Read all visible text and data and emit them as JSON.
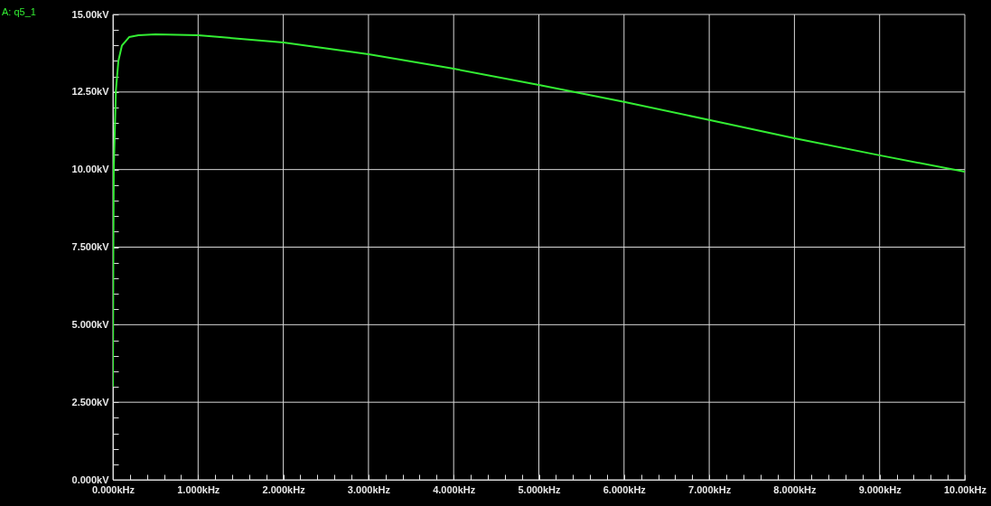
{
  "chart_data": {
    "type": "line",
    "legend": "top left",
    "grid": true,
    "marker": "none",
    "line_style": "solid",
    "xlim": [
      0,
      10
    ],
    "ylim": [
      0,
      15
    ],
    "xticks": [
      {
        "value": 0,
        "label": "0.000kHz"
      },
      {
        "value": 0.2,
        "label": null
      },
      {
        "value": 0.4,
        "label": null
      },
      {
        "value": 0.6,
        "label": null
      },
      {
        "value": 0.8,
        "label": null
      },
      {
        "value": 1,
        "label": "1.000kHz"
      },
      {
        "value": 1.2,
        "label": null
      },
      {
        "value": 1.4,
        "label": null
      },
      {
        "value": 1.6,
        "label": null
      },
      {
        "value": 1.8,
        "label": null
      },
      {
        "value": 2,
        "label": "2.000kHz"
      },
      {
        "value": 2.2,
        "label": null
      },
      {
        "value": 2.4,
        "label": null
      },
      {
        "value": 2.6,
        "label": null
      },
      {
        "value": 2.8,
        "label": null
      },
      {
        "value": 3,
        "label": "3.000kHz"
      },
      {
        "value": 3.2,
        "label": null
      },
      {
        "value": 3.4,
        "label": null
      },
      {
        "value": 3.6,
        "label": null
      },
      {
        "value": 3.8,
        "label": null
      },
      {
        "value": 4,
        "label": "4.000kHz"
      },
      {
        "value": 4.2,
        "label": null
      },
      {
        "value": 4.4,
        "label": null
      },
      {
        "value": 4.6,
        "label": null
      },
      {
        "value": 4.8,
        "label": null
      },
      {
        "value": 5,
        "label": "5.000kHz"
      },
      {
        "value": 5.2,
        "label": null
      },
      {
        "value": 5.4,
        "label": null
      },
      {
        "value": 5.6,
        "label": null
      },
      {
        "value": 5.8,
        "label": null
      },
      {
        "value": 6,
        "label": "6.000kHz"
      },
      {
        "value": 6.2,
        "label": null
      },
      {
        "value": 6.4,
        "label": null
      },
      {
        "value": 6.6,
        "label": null
      },
      {
        "value": 6.8,
        "label": null
      },
      {
        "value": 7,
        "label": "7.000kHz"
      },
      {
        "value": 7.2,
        "label": null
      },
      {
        "value": 7.4,
        "label": null
      },
      {
        "value": 7.6,
        "label": null
      },
      {
        "value": 7.8,
        "label": null
      },
      {
        "value": 8,
        "label": "8.000kHz"
      },
      {
        "value": 8.2,
        "label": null
      },
      {
        "value": 8.4,
        "label": null
      },
      {
        "value": 8.6,
        "label": null
      },
      {
        "value": 8.8,
        "label": null
      },
      {
        "value": 9,
        "label": "9.000kHz"
      },
      {
        "value": 9.2,
        "label": null
      },
      {
        "value": 9.4,
        "label": null
      },
      {
        "value": 9.6,
        "label": null
      },
      {
        "value": 9.8,
        "label": null
      },
      {
        "value": 10,
        "label": "10.00kHz"
      }
    ],
    "yticks": [
      {
        "value": 0,
        "label": "0.000kV"
      },
      {
        "value": 0.5,
        "label": null
      },
      {
        "value": 1,
        "label": null
      },
      {
        "value": 1.5,
        "label": null
      },
      {
        "value": 2,
        "label": null
      },
      {
        "value": 2.5,
        "label": "2.500kV"
      },
      {
        "value": 3,
        "label": null
      },
      {
        "value": 3.5,
        "label": null
      },
      {
        "value": 4,
        "label": null
      },
      {
        "value": 4.5,
        "label": null
      },
      {
        "value": 5,
        "label": "5.000kV"
      },
      {
        "value": 5.5,
        "label": null
      },
      {
        "value": 6,
        "label": null
      },
      {
        "value": 6.5,
        "label": null
      },
      {
        "value": 7,
        "label": null
      },
      {
        "value": 7.5,
        "label": "7.500kV"
      },
      {
        "value": 8,
        "label": null
      },
      {
        "value": 8.5,
        "label": null
      },
      {
        "value": 9,
        "label": null
      },
      {
        "value": 9.5,
        "label": null
      },
      {
        "value": 10,
        "label": "10.00kV"
      },
      {
        "value": 10.5,
        "label": null
      },
      {
        "value": 11,
        "label": null
      },
      {
        "value": 11.5,
        "label": null
      },
      {
        "value": 12,
        "label": null
      },
      {
        "value": 12.5,
        "label": "12.50kV"
      },
      {
        "value": 13,
        "label": null
      },
      {
        "value": 13.5,
        "label": null
      },
      {
        "value": 14,
        "label": null
      },
      {
        "value": 14.5,
        "label": null
      },
      {
        "value": 15,
        "label": "15.00kV"
      }
    ],
    "series": [
      {
        "name": "A: q5_1",
        "color": "#33ee33",
        "x": [
          0,
          0.005,
          0.01,
          0.035,
          0.064,
          0.106,
          0.19,
          0.3,
          0.5,
          1,
          2,
          3,
          4,
          5,
          6,
          7,
          8,
          9,
          10
        ],
        "values": [
          3.0,
          7.5,
          10.0,
          12.55,
          13.5,
          14.0,
          14.27,
          14.33,
          14.36,
          14.33,
          14.1,
          13.72,
          13.25,
          12.73,
          12.18,
          11.6,
          11.01,
          10.46,
          9.93
        ]
      }
    ]
  }
}
